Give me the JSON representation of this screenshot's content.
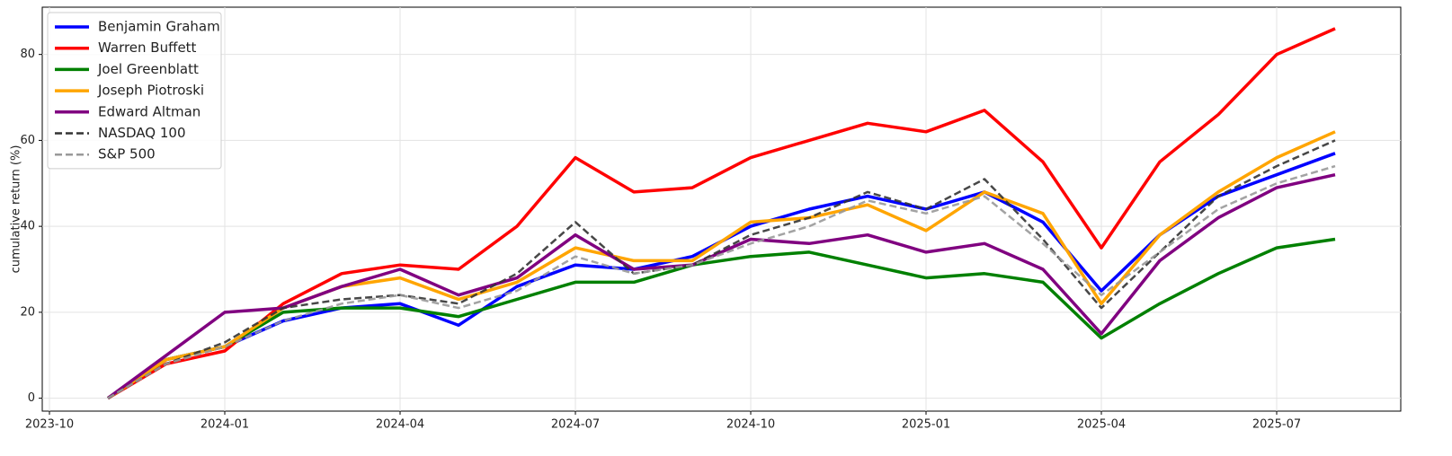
{
  "chart_data": {
    "type": "line",
    "y_label": "cumulative return (%)",
    "x": [
      "2023-11",
      "2023-12",
      "2024-01",
      "2024-02",
      "2024-03",
      "2024-04",
      "2024-05",
      "2024-06",
      "2024-07",
      "2024-08",
      "2024-09",
      "2024-10",
      "2024-11",
      "2024-12",
      "2025-01",
      "2025-02",
      "2025-03",
      "2025-04",
      "2025-05",
      "2025-06",
      "2025-07",
      "2025-08"
    ],
    "xlim": [
      "2023-10",
      "2025-09"
    ],
    "xticks": [
      "2023-10",
      "2024-01",
      "2024-04",
      "2024-07",
      "2024-10",
      "2025-01",
      "2025-04",
      "2025-07"
    ],
    "ylim": [
      -3,
      91
    ],
    "yticks": [
      0,
      20,
      40,
      60,
      80
    ],
    "grid": true,
    "legend": "upper-left",
    "series": [
      {
        "name": "Benjamin Graham",
        "color": "#0000ff",
        "linestyle": "solid",
        "values": [
          0,
          9,
          12,
          18,
          21,
          22,
          17,
          26,
          31,
          30,
          33,
          40,
          44,
          47,
          44,
          48,
          41,
          25,
          38,
          47,
          52,
          57
        ]
      },
      {
        "name": "Warren Buffett",
        "color": "#ff0000",
        "linestyle": "solid",
        "values": [
          0,
          8,
          11,
          22,
          29,
          31,
          30,
          40,
          56,
          48,
          49,
          56,
          60,
          64,
          62,
          67,
          55,
          35,
          55,
          66,
          80,
          86
        ]
      },
      {
        "name": "Joel Greenblatt",
        "color": "#008000",
        "linestyle": "solid",
        "values": [
          0,
          9,
          12,
          20,
          21,
          21,
          19,
          23,
          27,
          27,
          31,
          33,
          34,
          31,
          28,
          29,
          27,
          14,
          22,
          29,
          35,
          37
        ]
      },
      {
        "name": "Joseph Piotroski",
        "color": "#ffa500",
        "linestyle": "solid",
        "values": [
          0,
          9,
          12,
          21,
          26,
          28,
          23,
          27,
          35,
          32,
          32,
          41,
          42,
          45,
          39,
          48,
          43,
          22,
          38,
          48,
          56,
          62
        ]
      },
      {
        "name": "Edward Altman",
        "color": "#800080",
        "linestyle": "solid",
        "values": [
          0,
          10,
          20,
          21,
          26,
          30,
          24,
          28,
          38,
          30,
          31,
          37,
          36,
          38,
          34,
          36,
          30,
          15,
          32,
          42,
          49,
          52
        ]
      },
      {
        "name": "NASDAQ 100",
        "color": "#333333",
        "linestyle": "dashed",
        "values": [
          0,
          8,
          13,
          21,
          23,
          24,
          22,
          29,
          41,
          29,
          31,
          38,
          42,
          48,
          44,
          51,
          37,
          21,
          34,
          47,
          54,
          60
        ]
      },
      {
        "name": "S&P 500",
        "color": "#999999",
        "linestyle": "dashed",
        "values": [
          0,
          8,
          12,
          18,
          22,
          24,
          21,
          25,
          33,
          29,
          31,
          36,
          40,
          46,
          43,
          47,
          36,
          24,
          34,
          44,
          50,
          54
        ]
      }
    ]
  }
}
